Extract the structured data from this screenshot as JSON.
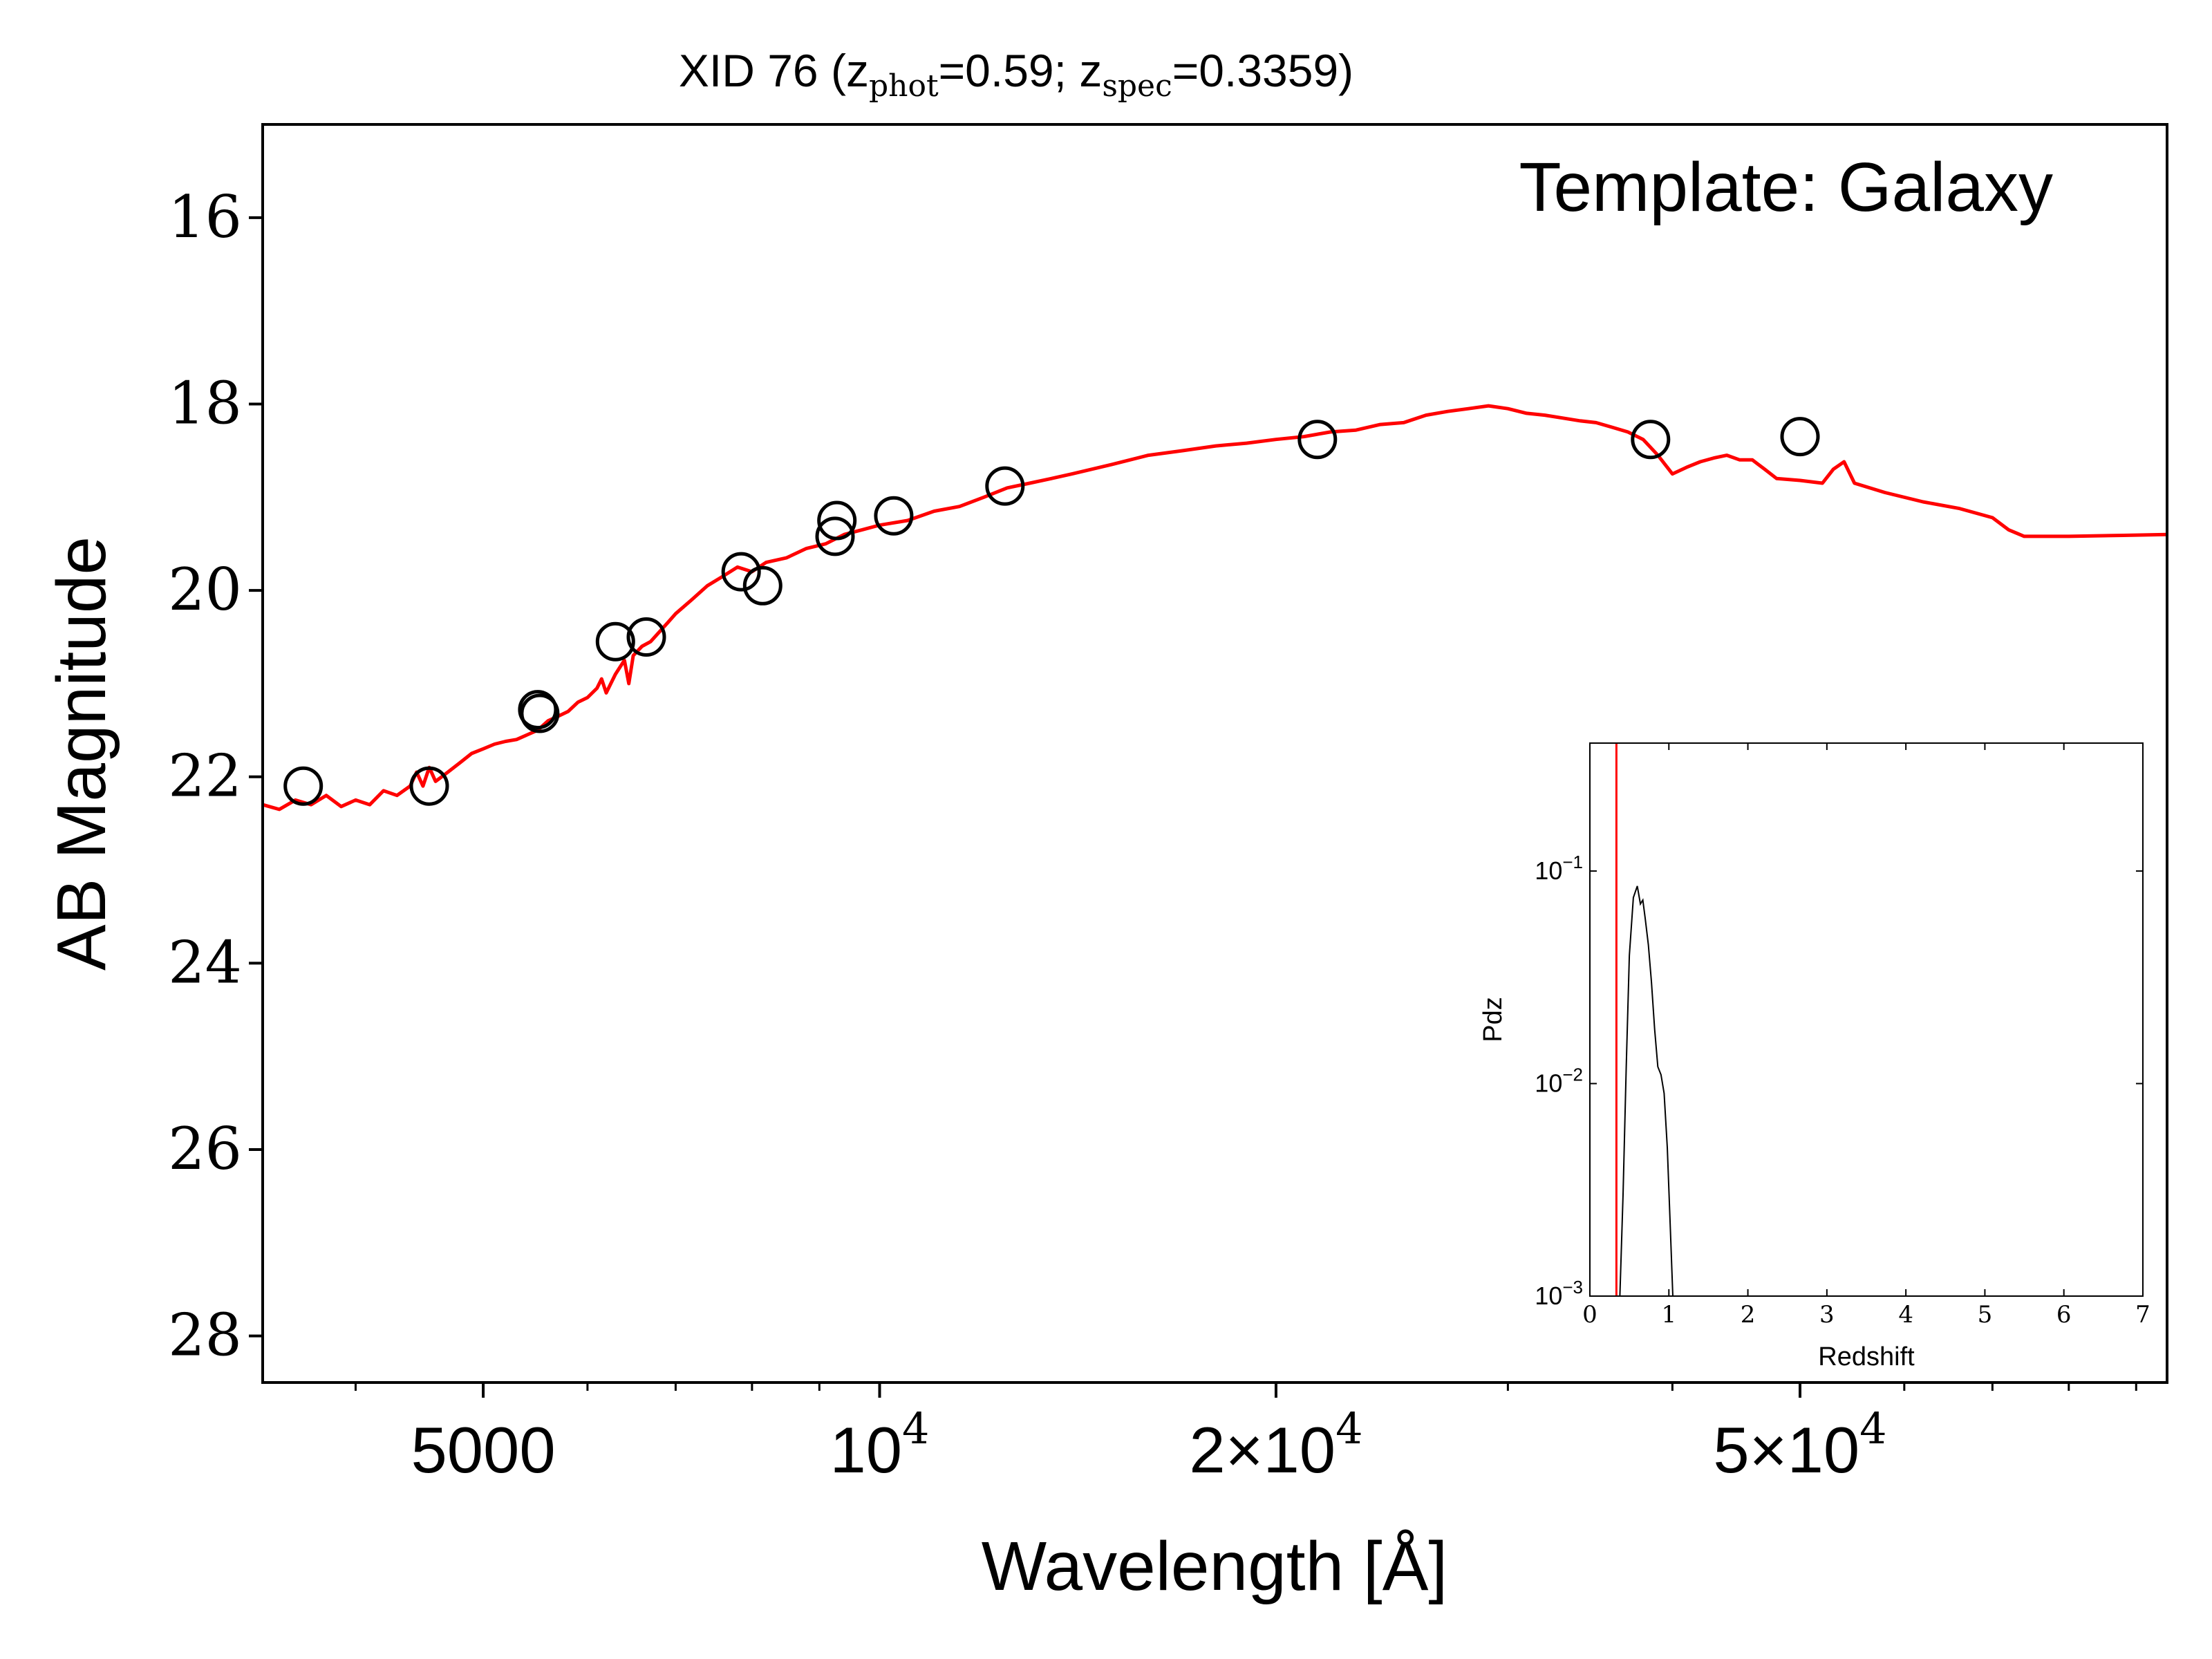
{
  "title": {
    "prefix": "XID 76 (z",
    "sub1": "phot",
    "mid": "=0.59; z",
    "sub2": "spec",
    "suffix": "=0.3359)"
  },
  "annotation": "Template: Galaxy",
  "chart_data": [
    {
      "type": "line+scatter",
      "xlabel": "Wavelength [Å]",
      "ylabel": "AB Magnitude",
      "xscale": "log",
      "xlim": [
        3400,
        95000
      ],
      "ylim": [
        28.5,
        15.0
      ],
      "y_inverted": true,
      "yticks": [
        16,
        18,
        20,
        22,
        24,
        26,
        28
      ],
      "xticks_major": [
        {
          "value": 5000,
          "label": "5000"
        },
        {
          "value": 10000,
          "label": "10",
          "exp": "4"
        },
        {
          "value": 20000,
          "label": "2×10",
          "exp": "4"
        },
        {
          "value": 50000,
          "label": "5×10",
          "exp": "4"
        }
      ],
      "xticks_minor": [
        4000,
        6000,
        7000,
        8000,
        9000,
        30000,
        40000,
        60000,
        70000,
        80000,
        90000
      ],
      "colors": {
        "template": "#ff0000",
        "photometry": "#000000"
      },
      "series": [
        {
          "kind": "line",
          "points": [
            [
              3400,
              22.3
            ],
            [
              3500,
              22.35
            ],
            [
              3600,
              22.25
            ],
            [
              3700,
              22.3
            ],
            [
              3800,
              22.2
            ],
            [
              3900,
              22.32
            ],
            [
              4000,
              22.25
            ],
            [
              4100,
              22.3
            ],
            [
              4200,
              22.15
            ],
            [
              4300,
              22.2
            ],
            [
              4400,
              22.1
            ],
            [
              4450,
              21.95
            ],
            [
              4500,
              22.1
            ],
            [
              4550,
              21.9
            ],
            [
              4600,
              22.05
            ],
            [
              4700,
              21.95
            ],
            [
              4800,
              21.85
            ],
            [
              4900,
              21.75
            ],
            [
              5000,
              21.7
            ],
            [
              5100,
              21.65
            ],
            [
              5200,
              21.62
            ],
            [
              5300,
              21.6
            ],
            [
              5400,
              21.55
            ],
            [
              5500,
              21.5
            ],
            [
              5600,
              21.4
            ],
            [
              5700,
              21.35
            ],
            [
              5800,
              21.3
            ],
            [
              5900,
              21.2
            ],
            [
              6000,
              21.15
            ],
            [
              6100,
              21.05
            ],
            [
              6150,
              20.95
            ],
            [
              6200,
              21.1
            ],
            [
              6300,
              20.9
            ],
            [
              6400,
              20.75
            ],
            [
              6450,
              21.0
            ],
            [
              6500,
              20.7
            ],
            [
              6600,
              20.6
            ],
            [
              6700,
              20.55
            ],
            [
              6800,
              20.45
            ],
            [
              6900,
              20.35
            ],
            [
              7000,
              20.25
            ],
            [
              7200,
              20.1
            ],
            [
              7400,
              19.95
            ],
            [
              7600,
              19.85
            ],
            [
              7800,
              19.75
            ],
            [
              8000,
              19.8
            ],
            [
              8200,
              19.7
            ],
            [
              8500,
              19.65
            ],
            [
              8800,
              19.55
            ],
            [
              9100,
              19.5
            ],
            [
              9400,
              19.4
            ],
            [
              9700,
              19.35
            ],
            [
              10000,
              19.3
            ],
            [
              10500,
              19.25
            ],
            [
              11000,
              19.15
            ],
            [
              11500,
              19.1
            ],
            [
              12000,
              19.0
            ],
            [
              12500,
              18.9
            ],
            [
              13000,
              18.85
            ],
            [
              13500,
              18.8
            ],
            [
              14000,
              18.75
            ],
            [
              15000,
              18.65
            ],
            [
              16000,
              18.55
            ],
            [
              17000,
              18.5
            ],
            [
              18000,
              18.45
            ],
            [
              19000,
              18.42
            ],
            [
              20000,
              18.38
            ],
            [
              21000,
              18.35
            ],
            [
              22000,
              18.3
            ],
            [
              23000,
              18.28
            ],
            [
              24000,
              18.22
            ],
            [
              25000,
              18.2
            ],
            [
              26000,
              18.12
            ],
            [
              27000,
              18.08
            ],
            [
              28000,
              18.05
            ],
            [
              29000,
              18.02
            ],
            [
              30000,
              18.05
            ],
            [
              31000,
              18.1
            ],
            [
              32000,
              18.12
            ],
            [
              33000,
              18.15
            ],
            [
              34000,
              18.18
            ],
            [
              35000,
              18.2
            ],
            [
              36000,
              18.25
            ],
            [
              37000,
              18.3
            ],
            [
              38000,
              18.38
            ],
            [
              39000,
              18.55
            ],
            [
              40000,
              18.75
            ],
            [
              41000,
              18.68
            ],
            [
              42000,
              18.62
            ],
            [
              43000,
              18.58
            ],
            [
              44000,
              18.55
            ],
            [
              45000,
              18.6
            ],
            [
              46000,
              18.6
            ],
            [
              47000,
              18.7
            ],
            [
              48000,
              18.8
            ],
            [
              50000,
              18.82
            ],
            [
              52000,
              18.85
            ],
            [
              53000,
              18.7
            ],
            [
              54000,
              18.62
            ],
            [
              55000,
              18.85
            ],
            [
              58000,
              18.95
            ],
            [
              62000,
              19.05
            ],
            [
              66000,
              19.12
            ],
            [
              70000,
              19.22
            ],
            [
              72000,
              19.35
            ],
            [
              74000,
              19.42
            ],
            [
              80000,
              19.42
            ],
            [
              88000,
              19.41
            ],
            [
              95000,
              19.4
            ]
          ]
        },
        {
          "kind": "scatter",
          "marker": "open-circle",
          "points": [
            [
              3650,
              22.1
            ],
            [
              4550,
              22.1
            ],
            [
              5500,
              21.28
            ],
            [
              5520,
              21.32
            ],
            [
              6300,
              20.55
            ],
            [
              6650,
              20.5
            ],
            [
              7850,
              19.8
            ],
            [
              8150,
              19.95
            ],
            [
              9250,
              19.42
            ],
            [
              9280,
              19.25
            ],
            [
              10250,
              19.2
            ],
            [
              12450,
              18.88
            ],
            [
              21500,
              18.38
            ],
            [
              38500,
              18.38
            ],
            [
              50000,
              18.35
            ]
          ]
        }
      ]
    },
    {
      "type": "line",
      "inset": true,
      "xlabel": "Redshift",
      "ylabel": "Pdz",
      "xlim": [
        0,
        7
      ],
      "yscale": "log",
      "ylim": [
        0.001,
        0.4
      ],
      "xticks": [
        0,
        1,
        2,
        3,
        4,
        5,
        6,
        7
      ],
      "yticks": [
        {
          "value": 0.1,
          "label": "10",
          "exp": "−1"
        },
        {
          "value": 0.01,
          "label": "10",
          "exp": "−2"
        },
        {
          "value": 0.001,
          "label": "10",
          "exp": "−3"
        }
      ],
      "vline": {
        "x": 0.3359,
        "color": "#ff0000"
      },
      "series": [
        {
          "color": "#000000",
          "points": [
            [
              0.38,
              0.001
            ],
            [
              0.42,
              0.003
            ],
            [
              0.46,
              0.012
            ],
            [
              0.5,
              0.04
            ],
            [
              0.55,
              0.075
            ],
            [
              0.6,
              0.085
            ],
            [
              0.64,
              0.07
            ],
            [
              0.67,
              0.073
            ],
            [
              0.7,
              0.06
            ],
            [
              0.74,
              0.045
            ],
            [
              0.78,
              0.03
            ],
            [
              0.82,
              0.018
            ],
            [
              0.86,
              0.012
            ],
            [
              0.9,
              0.011
            ],
            [
              0.94,
              0.009
            ],
            [
              0.98,
              0.005
            ],
            [
              1.02,
              0.002
            ],
            [
              1.05,
              0.001
            ]
          ]
        }
      ]
    }
  ]
}
